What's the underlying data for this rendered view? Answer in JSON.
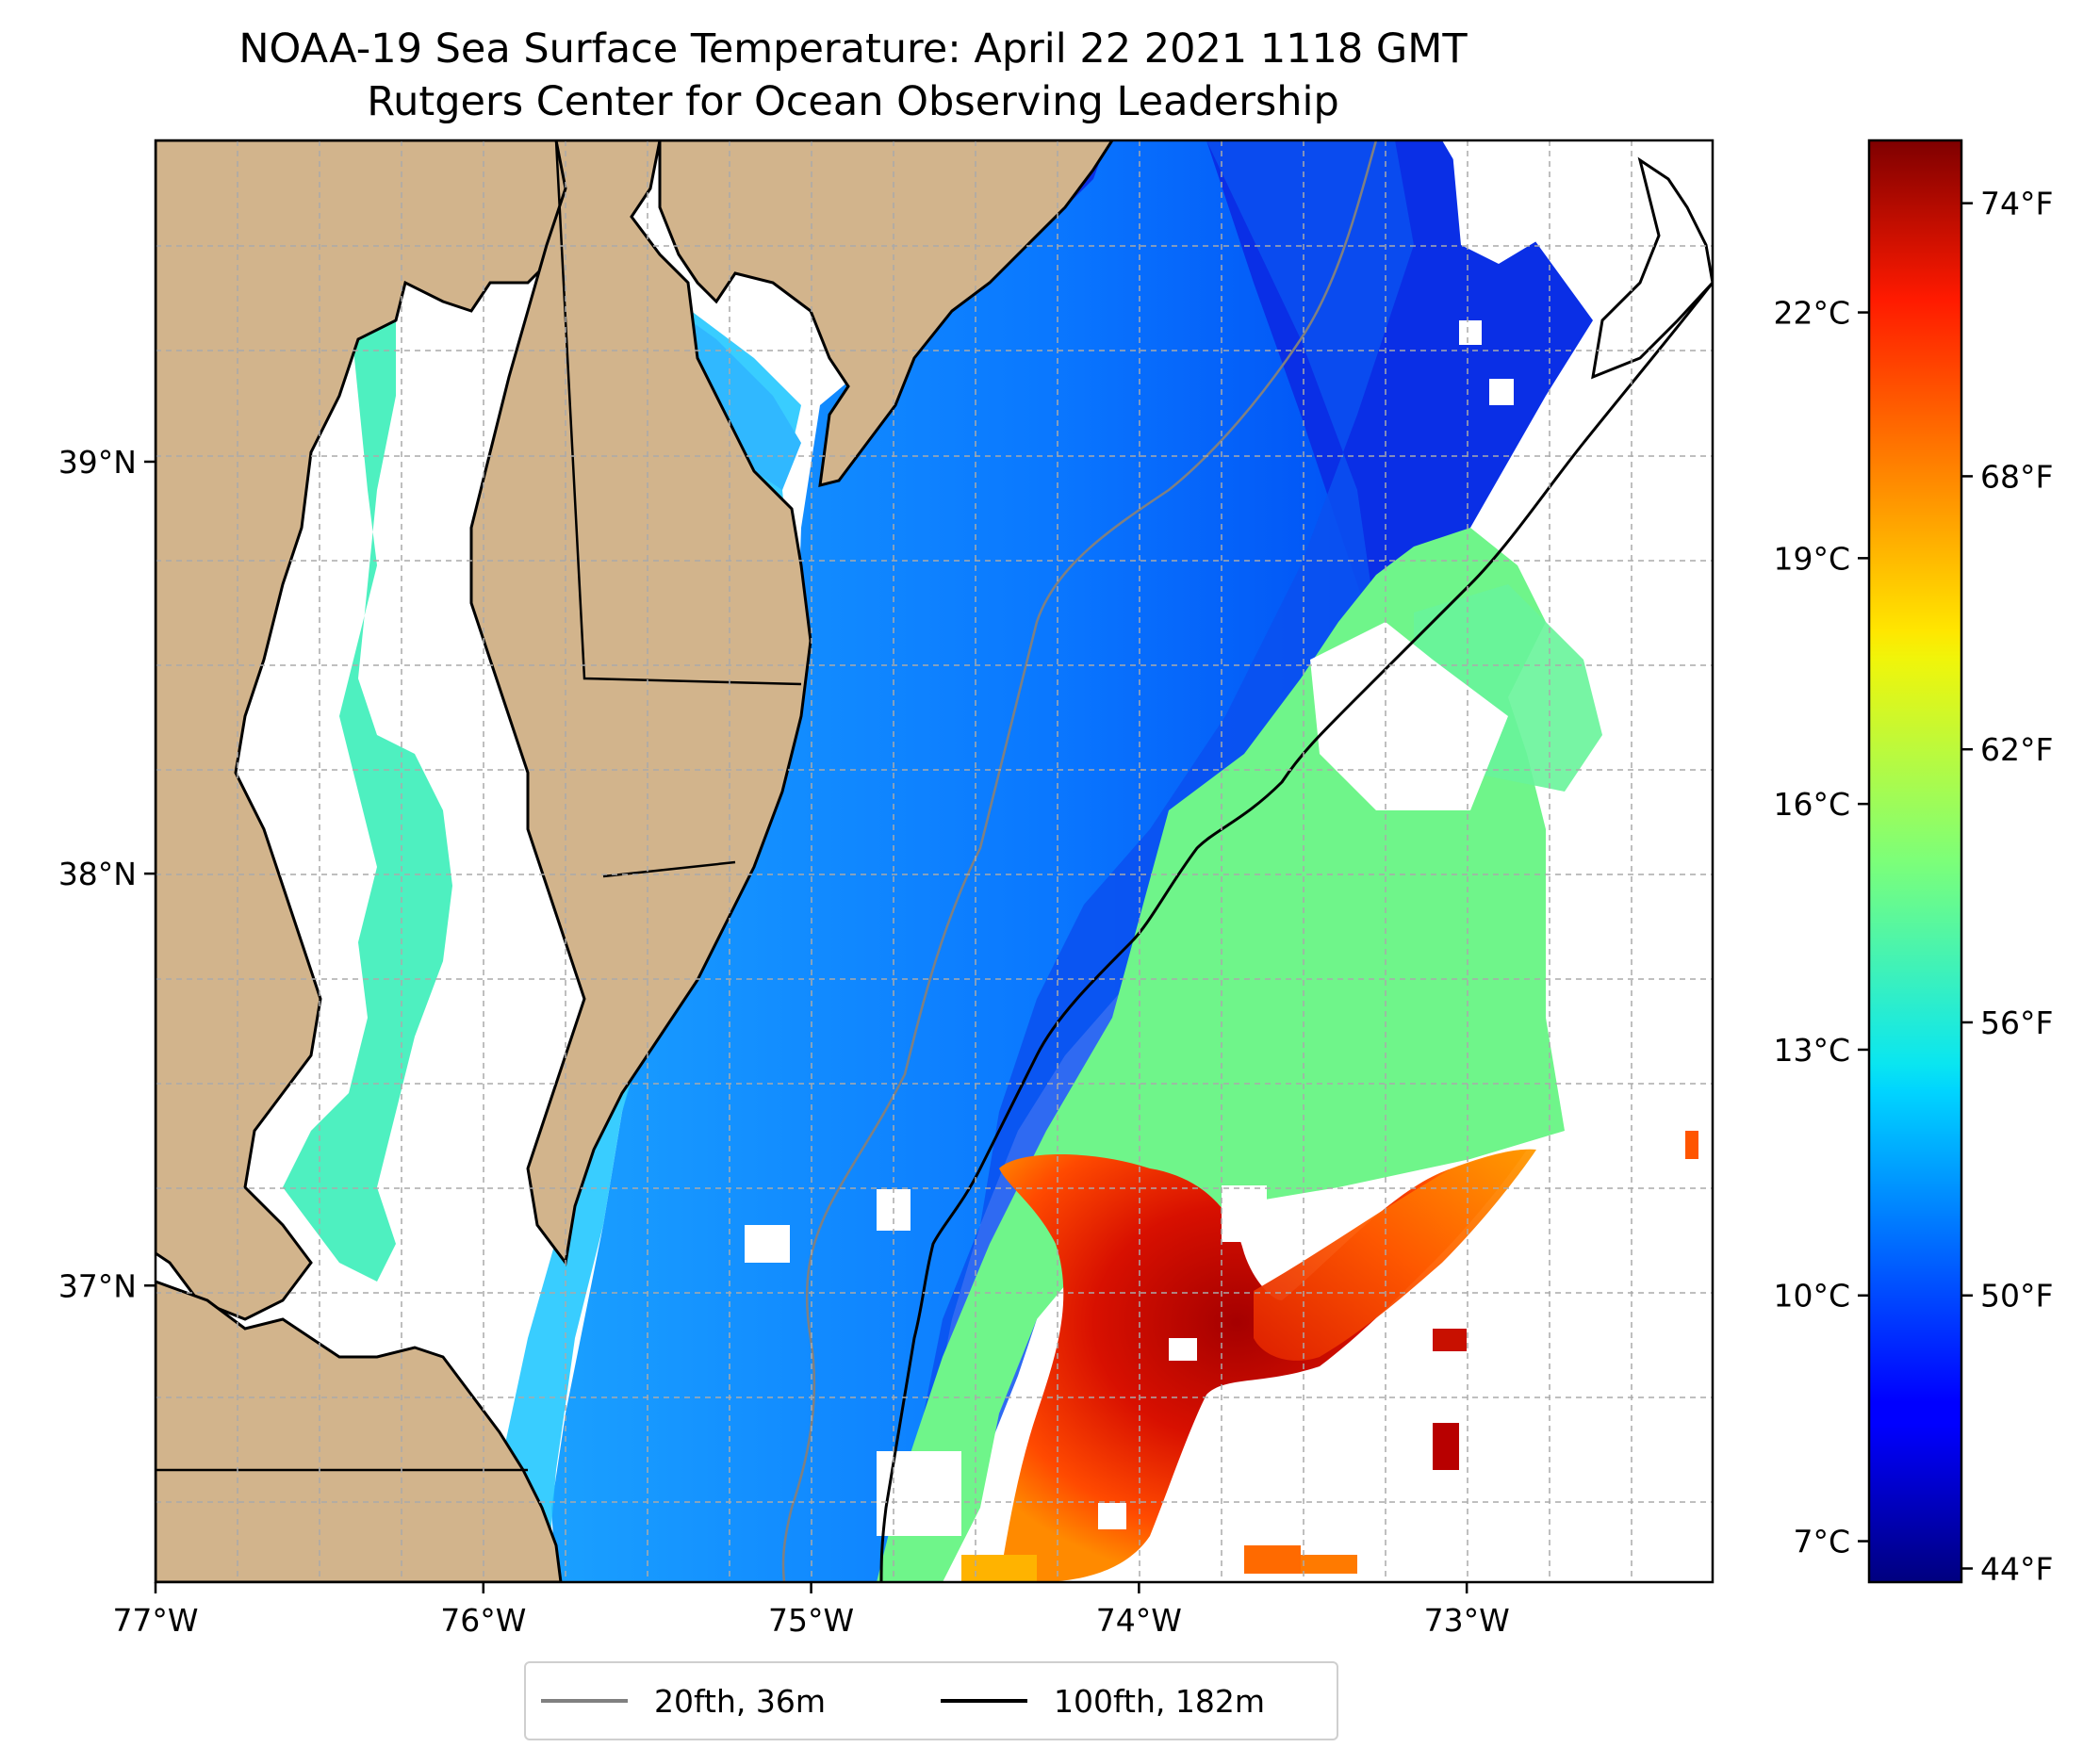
{
  "title": {
    "line1": "NOAA-19 Sea Surface Temperature: April 22 2021 1118 GMT",
    "line2": "Rutgers Center for Ocean Observing Leadership"
  },
  "map": {
    "lon_range": [
      -77.0,
      -72.25
    ],
    "lat_range": [
      36.28,
      39.78
    ],
    "lon_ticks": [
      {
        "value": -77,
        "label": "77°W"
      },
      {
        "value": -76,
        "label": "76°W"
      },
      {
        "value": -75,
        "label": "75°W"
      },
      {
        "value": -74,
        "label": "74°W"
      },
      {
        "value": -73,
        "label": "73°W"
      }
    ],
    "lat_ticks": [
      {
        "value": 39,
        "label": "39°N"
      },
      {
        "value": 38,
        "label": "38°N"
      },
      {
        "value": 37,
        "label": "37°N"
      }
    ],
    "gridlines": true,
    "colors": {
      "land": "#d2b48c",
      "no_data": "#ffffff",
      "coast": "#000000"
    }
  },
  "colorbar": {
    "colormap": "jet",
    "range_celsius": [
      6.5,
      24.1
    ],
    "celsius_ticks": [
      {
        "value": 7,
        "label": "7°C"
      },
      {
        "value": 10,
        "label": "10°C"
      },
      {
        "value": 13,
        "label": "13°C"
      },
      {
        "value": 16,
        "label": "16°C"
      },
      {
        "value": 19,
        "label": "19°C"
      },
      {
        "value": 22,
        "label": "22°C"
      }
    ],
    "fahrenheit_ticks": [
      {
        "value": 44,
        "label": "44°F"
      },
      {
        "value": 50,
        "label": "50°F"
      },
      {
        "value": 56,
        "label": "56°F"
      },
      {
        "value": 62,
        "label": "62°F"
      },
      {
        "value": 68,
        "label": "68°F"
      },
      {
        "value": 74,
        "label": "74°F"
      }
    ]
  },
  "legend": {
    "items": [
      {
        "label": "20fth, 36m",
        "color": "#808080"
      },
      {
        "label": "100fth, 182m",
        "color": "#000000"
      }
    ],
    "placement": "bottom-center"
  }
}
